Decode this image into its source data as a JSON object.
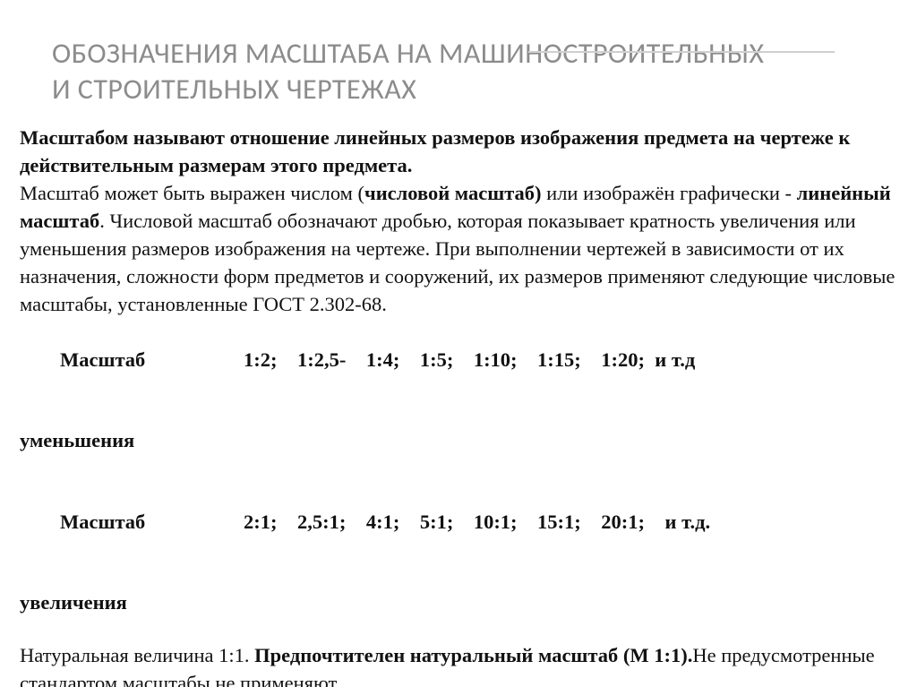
{
  "colors": {
    "background": "#ffffff",
    "title_color": "#8c8c8c",
    "title_underline": "#cfcfcf",
    "text_color": "#1a1a1a"
  },
  "typography": {
    "title_font": "Calibri, Arial, sans-serif",
    "title_size_pt": 24,
    "body_font": "Georgia, serif",
    "body_size_pt": 17
  },
  "title": {
    "line1": "ОБОЗНАЧЕНИЯ МАСШТАБА НА МАШИНОСТРОИТЕЛЬНЫХ",
    "line2": "И СТРОИТЕЛЬНЫХ ЧЕРТЕЖАХ"
  },
  "definition": "Масштабом называют отношение линейных размеров изображения предмета на чертеже к действительным размерам этого предмета.",
  "paragraph": {
    "p1": "Масштаб может быть выражен числом (",
    "p2": "числовой масштаб)",
    "p3": " или изображён графически - ",
    "p4": "линейный масштаб",
    "p5": ". Числовой масштаб обозначают дробью, которая показывает кратность увеличения или уменьшения размеров изображения на чертеже. При выполнении чертежей в зависимости от их назначения, сложности форм предметов и сооружений, их размеров применяют следующие числовые масштабы, установленные ГОСТ 2.302-68."
  },
  "scale_reduce": {
    "label": "Масштаб",
    "values": "1:2;    1:2,5-    1:4;    1:5;    1:10;    1:15;    1:20;  и т.д",
    "sub": " уменьшения"
  },
  "scale_enlarge": {
    "label": "Масштаб",
    "values": "2:1;    2,5:1;    4:1;    5:1;    10:1;    15:1;    20:1;    и т.д.",
    "sub": "увеличения"
  },
  "natural": {
    "p1": "Натуральная величина 1:1. ",
    "p2": "Предпочтителен натуральный масштаб (М 1:1).",
    "p3": "Не предусмотренные стандартом масштабы не применяют"
  }
}
